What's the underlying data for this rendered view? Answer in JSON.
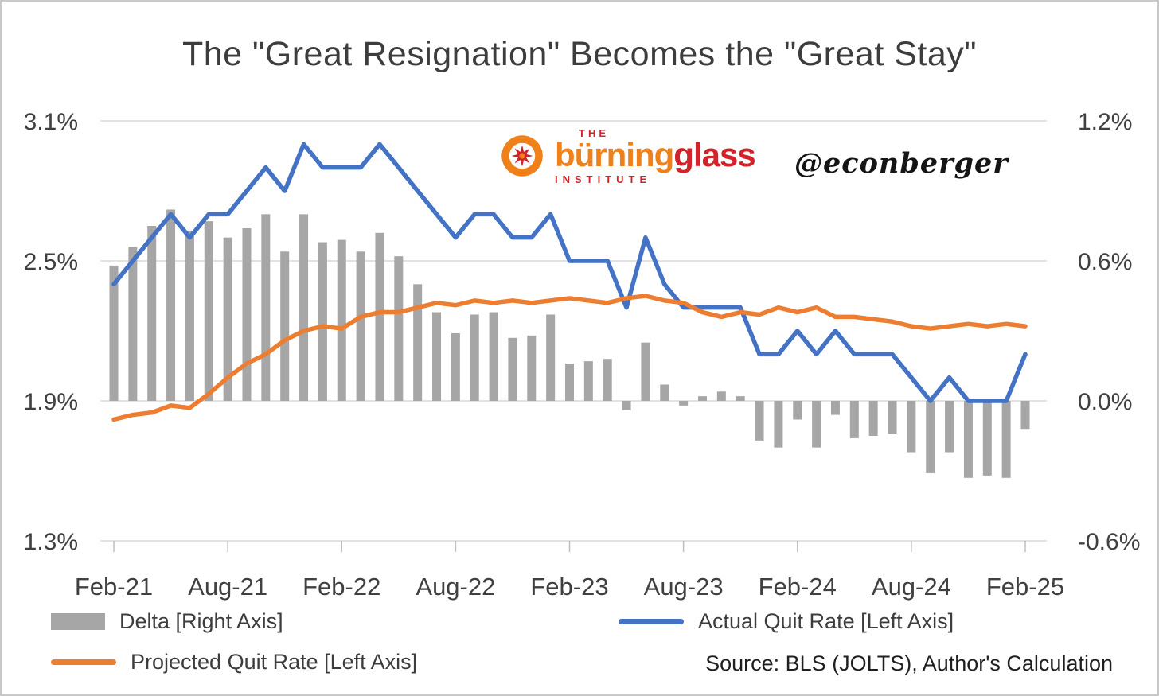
{
  "title": "The \"Great Resignation\" Becomes the \"Great Stay\"",
  "watermark": "@econberger",
  "source": "Source: BLS (JOLTS), Author's Calculation",
  "logo": {
    "the": "THE",
    "burning": "bürning",
    "glass": "glass",
    "institute": "INSTITUTE"
  },
  "legend": {
    "delta": "Delta [Right Axis]",
    "actual": "Actual Quit Rate [Left Axis]",
    "projected": "Projected Quit Rate [Left Axis]"
  },
  "colors": {
    "bar": "#a6a6a6",
    "actual": "#4472c4",
    "projected": "#ed7d31",
    "grid": "#d9d9d9",
    "tick": "#bfbfbf",
    "text": "#404040"
  },
  "chart_data": {
    "type": "combo: bar + two lines",
    "x": [
      "Feb-21",
      "Mar-21",
      "Apr-21",
      "May-21",
      "Jun-21",
      "Jul-21",
      "Aug-21",
      "Sep-21",
      "Oct-21",
      "Nov-21",
      "Dec-21",
      "Jan-22",
      "Feb-22",
      "Mar-22",
      "Apr-22",
      "May-22",
      "Jun-22",
      "Jul-22",
      "Aug-22",
      "Sep-22",
      "Oct-22",
      "Nov-22",
      "Dec-22",
      "Jan-23",
      "Feb-23",
      "Mar-23",
      "Apr-23",
      "May-23",
      "Jun-23",
      "Jul-23",
      "Aug-23",
      "Sep-23",
      "Oct-23",
      "Nov-23",
      "Dec-23",
      "Jan-24",
      "Feb-24",
      "Mar-24",
      "Apr-24",
      "May-24",
      "Jun-24",
      "Jul-24",
      "Aug-24",
      "Sep-24",
      "Oct-24",
      "Nov-24",
      "Dec-24",
      "Jan-25",
      "Feb-25"
    ],
    "x_tick_labels": [
      "Feb-21",
      "Aug-21",
      "Feb-22",
      "Aug-22",
      "Feb-23",
      "Aug-23",
      "Feb-24",
      "Aug-24",
      "Feb-25"
    ],
    "left_axis": {
      "min": 1.3,
      "max": 3.1,
      "tick_values": [
        3.1,
        2.5,
        1.9,
        1.3
      ],
      "ticks": [
        "3.1%",
        "2.5%",
        "1.9%",
        "1.3%"
      ]
    },
    "right_axis": {
      "min": -0.6,
      "max": 1.2,
      "tick_values": [
        1.2,
        0.6,
        0.0,
        -0.6
      ],
      "ticks": [
        "1.2%",
        "0.6%",
        "0.0%",
        "-0.6%"
      ]
    },
    "grid": "horizontal only",
    "legend_position": "bottom",
    "series": [
      {
        "name": "Delta [Right Axis]",
        "type": "bar",
        "axis": "right",
        "values": [
          0.58,
          0.66,
          0.75,
          0.82,
          0.73,
          0.77,
          0.7,
          0.74,
          0.8,
          0.64,
          0.8,
          0.68,
          0.69,
          0.64,
          0.72,
          0.62,
          0.5,
          0.38,
          0.29,
          0.37,
          0.38,
          0.27,
          0.28,
          0.37,
          0.16,
          0.17,
          0.18,
          -0.04,
          0.25,
          0.07,
          -0.02,
          0.02,
          0.04,
          0.02,
          -0.17,
          -0.2,
          -0.08,
          -0.2,
          -0.06,
          -0.16,
          -0.15,
          -0.14,
          -0.22,
          -0.31,
          -0.22,
          -0.33,
          -0.32,
          -0.33,
          -0.12
        ]
      },
      {
        "name": "Actual Quit Rate [Left Axis]",
        "type": "line",
        "axis": "left",
        "values": [
          2.4,
          2.5,
          2.6,
          2.7,
          2.6,
          2.7,
          2.7,
          2.8,
          2.9,
          2.8,
          3.0,
          2.9,
          2.9,
          2.9,
          3.0,
          2.9,
          2.8,
          2.7,
          2.6,
          2.7,
          2.7,
          2.6,
          2.6,
          2.7,
          2.5,
          2.5,
          2.5,
          2.3,
          2.6,
          2.4,
          2.3,
          2.3,
          2.3,
          2.3,
          2.1,
          2.1,
          2.2,
          2.1,
          2.2,
          2.1,
          2.1,
          2.1,
          2.0,
          1.9,
          2.0,
          1.9,
          1.9,
          1.9,
          2.1
        ]
      },
      {
        "name": "Projected Quit Rate [Left Axis]",
        "type": "line",
        "axis": "left",
        "values": [
          1.82,
          1.84,
          1.85,
          1.88,
          1.87,
          1.93,
          2.0,
          2.06,
          2.1,
          2.16,
          2.2,
          2.22,
          2.21,
          2.26,
          2.28,
          2.28,
          2.3,
          2.32,
          2.31,
          2.33,
          2.32,
          2.33,
          2.32,
          2.33,
          2.34,
          2.33,
          2.32,
          2.34,
          2.35,
          2.33,
          2.32,
          2.28,
          2.26,
          2.28,
          2.27,
          2.3,
          2.28,
          2.3,
          2.26,
          2.26,
          2.25,
          2.24,
          2.22,
          2.21,
          2.22,
          2.23,
          2.22,
          2.23,
          2.22
        ]
      }
    ]
  }
}
